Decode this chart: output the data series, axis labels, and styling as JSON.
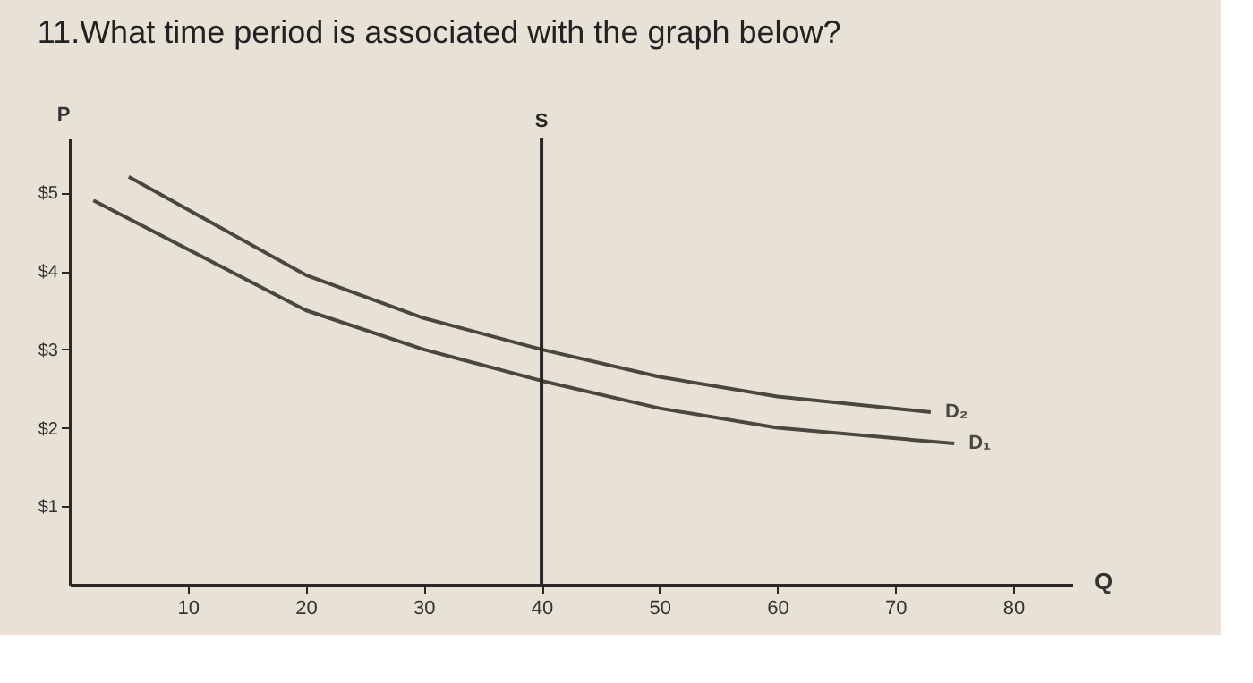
{
  "chart_data": {
    "type": "line",
    "title": "11.What time period is associated with the graph below?",
    "xlabel": "Q",
    "ylabel": "P",
    "xlim": [
      0,
      85
    ],
    "xticks": [
      10,
      20,
      30,
      40,
      50,
      60,
      70,
      80
    ],
    "ylim": [
      0,
      5.7
    ],
    "ref_lines": [
      {
        "axis": "x",
        "value": 40,
        "label": "S",
        "color": "#2a2724"
      }
    ],
    "yticks": [
      {
        "value": 1,
        "label": "$1"
      },
      {
        "value": 2,
        "label": "$2"
      },
      {
        "value": 3,
        "label": "$3"
      },
      {
        "value": 4,
        "label": "$4"
      },
      {
        "value": 5,
        "label": "$5"
      }
    ],
    "grid": false,
    "legend": false,
    "marker": "none",
    "line_style": "solid",
    "series": [
      {
        "name": "D₂",
        "color": "#4a4640",
        "x": [
          5,
          20,
          30,
          40,
          50,
          60,
          73
        ],
        "values": [
          5.2,
          3.95,
          3.4,
          3.0,
          2.65,
          2.4,
          2.2
        ]
      },
      {
        "name": "D₁",
        "color": "#4a4640",
        "x": [
          2,
          20,
          30,
          40,
          50,
          60,
          75
        ],
        "values": [
          4.9,
          3.5,
          3.0,
          2.6,
          2.25,
          2.0,
          1.8
        ]
      }
    ]
  }
}
